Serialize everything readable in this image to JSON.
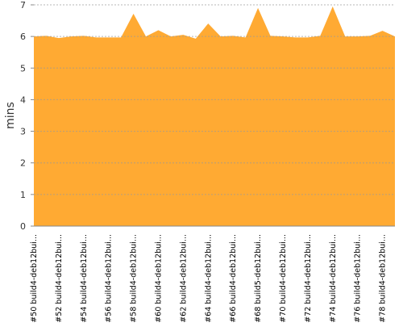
{
  "chart_data": {
    "type": "area",
    "y_label": "mins",
    "categories": [
      "#50 build4-deb12bui...",
      null,
      "#52 build4-deb12bui...",
      null,
      "#54 build4-deb12bui...",
      null,
      "#56 build4-deb12bui...",
      null,
      "#58 build4-deb12bui...",
      null,
      "#60 build4-deb12bui...",
      null,
      "#62 build4-deb12bui...",
      null,
      "#64 build4-deb12bui...",
      null,
      "#66 build4-deb12bui...",
      null,
      "#68 build5-deb12bui...",
      null,
      "#70 build4-deb12bui...",
      null,
      "#72 build4-deb12bui...",
      null,
      "#74 build4-deb12bui...",
      null,
      "#76 build4-deb12bui...",
      null,
      "#78 build4-deb12bui...",
      null
    ],
    "values": [
      6.0,
      6.02,
      5.95,
      6.0,
      6.02,
      5.97,
      5.97,
      5.97,
      6.72,
      6.0,
      6.2,
      6.0,
      6.05,
      5.93,
      6.41,
      6.0,
      6.02,
      5.97,
      6.9,
      6.02,
      6.0,
      5.97,
      5.97,
      6.02,
      6.95,
      6.0,
      6.0,
      6.02,
      6.18,
      6.0
    ],
    "color": "#ffaa33",
    "ylim": [
      0,
      7
    ],
    "yticks": [
      0,
      1,
      2,
      3,
      4,
      5,
      6,
      7
    ],
    "grid": true
  }
}
